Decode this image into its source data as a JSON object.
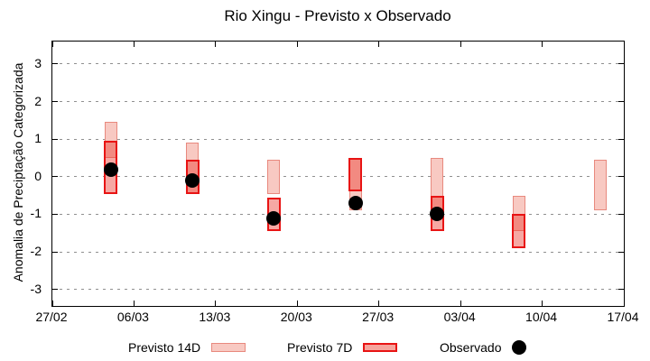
{
  "title": "Rio Xingu - Previsto x Observado",
  "y_axis_label": "Anomalia de Preciptação Categorizada",
  "legend": {
    "items": [
      {
        "label": "Previsto 14D",
        "swatch": "light-pink-range-box"
      },
      {
        "label": "Previsto 7D",
        "swatch": "red-range-box"
      },
      {
        "label": "Observado",
        "swatch": "black-dot"
      }
    ]
  },
  "colors": {
    "previsto_14d_fill": "#f8c9c2",
    "previsto_14d_border": "#e8897e",
    "previsto_7d_fill_solo": "#f6a49c",
    "previsto_7d_fill_alpha": "rgba(234,62,50,0.45)",
    "previsto_7d_border": "#e81414",
    "observado": "#000000",
    "grid": "#909090",
    "axis": "#000000"
  },
  "chart_data": {
    "type": "bar",
    "subtype": "forecast-range-bars-with-observed-points",
    "title": "Rio Xingu - Previsto x Observado",
    "xlabel": "",
    "ylabel": "Anomalia de Preciptação Categorizada",
    "ylim": [
      -3.44,
      3.6
    ],
    "grid": "horizontal-dashed",
    "legend_position": "bottom",
    "x_ticks": [
      {
        "label": "27/02",
        "day": 0
      },
      {
        "label": "06/03",
        "day": 7
      },
      {
        "label": "13/03",
        "day": 14
      },
      {
        "label": "20/03",
        "day": 21
      },
      {
        "label": "27/03",
        "day": 28
      },
      {
        "label": "03/04",
        "day": 35
      },
      {
        "label": "10/04",
        "day": 42
      },
      {
        "label": "17/04",
        "day": 49
      }
    ],
    "y_ticks": [
      3,
      2,
      1,
      0,
      -1,
      -2,
      -3
    ],
    "series": [
      {
        "name": "Previsto 14D",
        "type": "range-bar",
        "points": [
          {
            "date": "04/03",
            "day": 5,
            "low": 0.5,
            "high": 1.45
          },
          {
            "date": "11/03",
            "day": 12,
            "low": -0.45,
            "high": 0.9
          },
          {
            "date": "18/03",
            "day": 19,
            "low": -0.45,
            "high": 0.45
          },
          {
            "date": "25/03",
            "day": 26,
            "low": -0.9,
            "high": 0.5
          },
          {
            "date": "01/04",
            "day": 33,
            "low": -1.0,
            "high": 0.5
          },
          {
            "date": "08/04",
            "day": 40,
            "low": -1.45,
            "high": -0.5
          },
          {
            "date": "15/04",
            "day": 47,
            "low": -0.9,
            "high": 0.45
          }
        ]
      },
      {
        "name": "Previsto 7D",
        "type": "range-bar",
        "points": [
          {
            "date": "04/03",
            "day": 5,
            "low": -0.45,
            "high": 0.95
          },
          {
            "date": "11/03",
            "day": 12,
            "low": -0.45,
            "high": 0.45
          },
          {
            "date": "18/03",
            "day": 19,
            "low": -1.45,
            "high": -0.55
          },
          {
            "date": "25/03",
            "day": 26,
            "low": -0.4,
            "high": 0.5
          },
          {
            "date": "01/04",
            "day": 33,
            "low": -1.45,
            "high": -0.5
          },
          {
            "date": "08/04",
            "day": 40,
            "low": -1.9,
            "high": -1.0
          }
        ]
      },
      {
        "name": "Observado",
        "type": "scatter",
        "points": [
          {
            "date": "04/03",
            "day": 5,
            "value": 0.2
          },
          {
            "date": "11/03",
            "day": 12,
            "value": -0.1
          },
          {
            "date": "18/03",
            "day": 19,
            "value": -1.1
          },
          {
            "date": "25/03",
            "day": 26,
            "value": -0.7
          },
          {
            "date": "01/04",
            "day": 33,
            "value": -1.0
          }
        ]
      }
    ]
  }
}
